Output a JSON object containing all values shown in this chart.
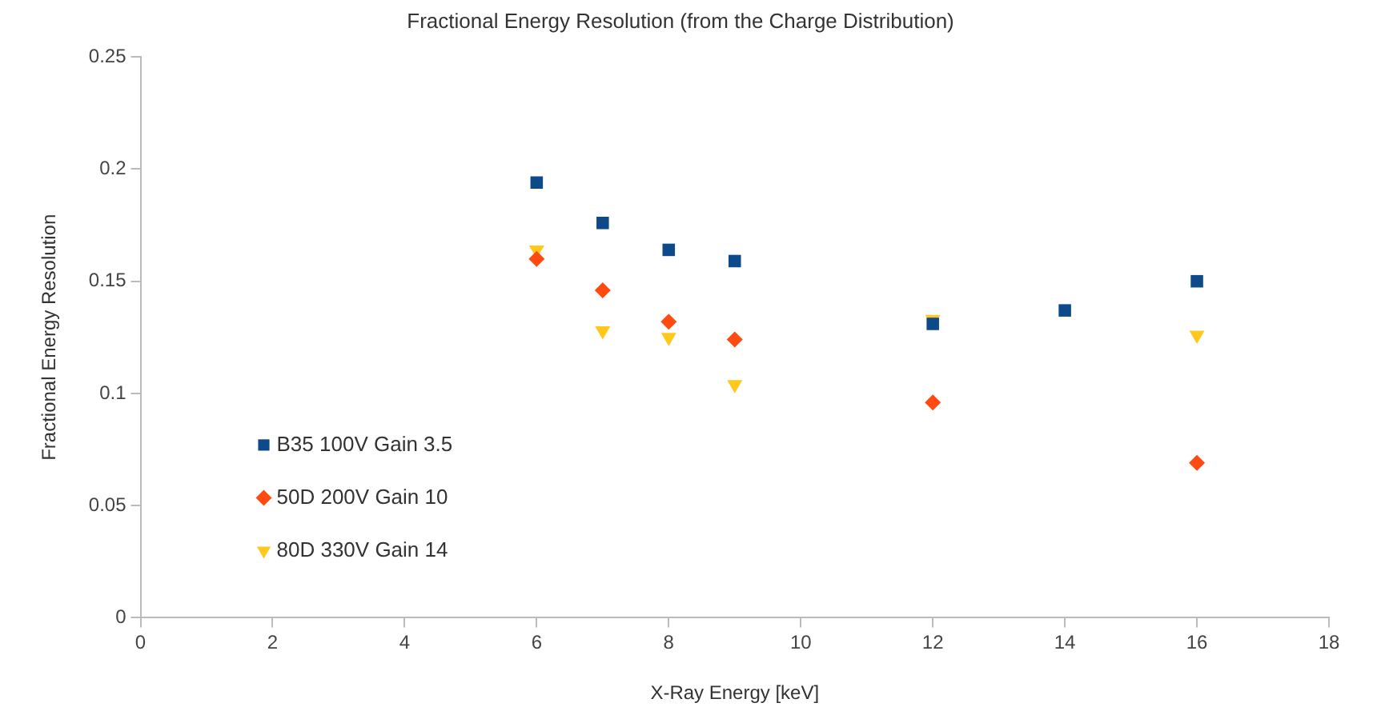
{
  "chart_data": {
    "type": "scatter",
    "title": "Fractional Energy Resolution (from the Charge Distribution)",
    "xlabel": "X-Ray Energy [keV]",
    "ylabel": "Fractional Energy Resolution",
    "xlim": [
      0,
      18
    ],
    "xticks": [
      0,
      2,
      4,
      6,
      8,
      10,
      12,
      14,
      16,
      18
    ],
    "ylim": [
      0,
      0.25
    ],
    "yticks": [
      0,
      0.05,
      0.1,
      0.15,
      0.2,
      0.25
    ],
    "grid": false,
    "legend": "bottom left",
    "series": [
      {
        "name": "B35 100V Gain 3.5",
        "color": "#0d4a8a",
        "marker": "square",
        "x": [
          6,
          7,
          8,
          9,
          12,
          14,
          16
        ],
        "values": [
          0.194,
          0.176,
          0.164,
          0.159,
          0.131,
          0.137,
          0.15
        ]
      },
      {
        "name": "50D 200V Gain 10",
        "color": "#ff4a12",
        "marker": "diamond",
        "x": [
          6,
          7,
          8,
          9,
          12,
          16
        ],
        "values": [
          0.16,
          0.146,
          0.132,
          0.124,
          0.096,
          0.069
        ]
      },
      {
        "name": "80D 330V Gain 14",
        "color": "#ffc81a",
        "marker": "triangle",
        "x": [
          6,
          7,
          8,
          9,
          12,
          16
        ],
        "values": [
          0.164,
          0.128,
          0.125,
          0.104,
          0.133,
          0.126
        ]
      }
    ]
  }
}
